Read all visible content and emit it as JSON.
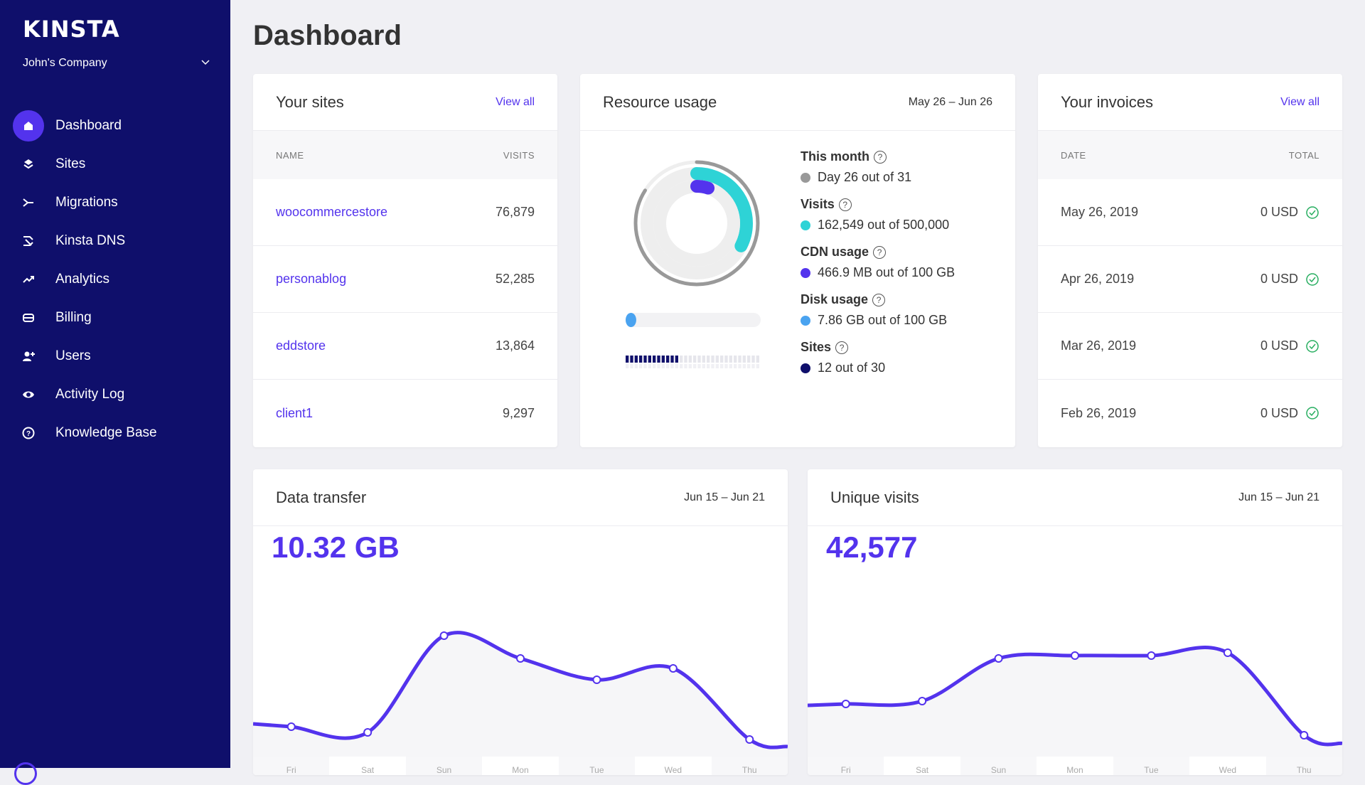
{
  "sidebar": {
    "logo": "KINSTA",
    "company": "John's Company",
    "items": [
      {
        "label": "Dashboard",
        "icon": "home-icon"
      },
      {
        "label": "Sites",
        "icon": "layers-icon"
      },
      {
        "label": "Migrations",
        "icon": "migrate-icon"
      },
      {
        "label": "Kinsta DNS",
        "icon": "dns-icon"
      },
      {
        "label": "Analytics",
        "icon": "trend-icon"
      },
      {
        "label": "Billing",
        "icon": "card-icon"
      },
      {
        "label": "Users",
        "icon": "add-user-icon"
      },
      {
        "label": "Activity Log",
        "icon": "eye-icon"
      },
      {
        "label": "Knowledge Base",
        "icon": "help-icon"
      }
    ]
  },
  "page": {
    "title": "Dashboard"
  },
  "sites": {
    "title": "Your sites",
    "view_all": "View all",
    "col_name": "NAME",
    "col_visits": "VISITS",
    "rows": [
      {
        "name": "woocommercestore",
        "visits": "76,879"
      },
      {
        "name": "personablog",
        "visits": "52,285"
      },
      {
        "name": "eddstore",
        "visits": "13,864"
      },
      {
        "name": "client1",
        "visits": "9,297"
      }
    ]
  },
  "resources": {
    "title": "Resource usage",
    "range": "May 26 – Jun 26",
    "this_month_label": "This month",
    "this_month_value": "Day 26 out of 31",
    "visits_label": "Visits",
    "visits_value": "162,549 out of 500,000",
    "cdn_label": "CDN usage",
    "cdn_value": "466.9 MB out of 100 GB",
    "disk_label": "Disk usage",
    "disk_value": "7.86 GB out of 100 GB",
    "sites_label": "Sites",
    "sites_value": "12 out of 30",
    "progress": {
      "month": 0.84,
      "visits": 0.325,
      "cdn": 0.0047,
      "disk": 0.0786,
      "sites": 0.4
    },
    "colors": {
      "month": "#999999",
      "visits": "#2ed3d6",
      "cdn": "#5333ed",
      "disk": "#4aa3f0",
      "sites": "#0f0f6b"
    }
  },
  "invoices": {
    "title": "Your invoices",
    "view_all": "View all",
    "col_date": "DATE",
    "col_total": "TOTAL",
    "rows": [
      {
        "date": "May 26, 2019",
        "total": "0 USD"
      },
      {
        "date": "Apr 26, 2019",
        "total": "0 USD"
      },
      {
        "date": "Mar 26, 2019",
        "total": "0 USD"
      },
      {
        "date": "Feb 26, 2019",
        "total": "0 USD"
      }
    ]
  },
  "transfer": {
    "title": "Data transfer",
    "range": "Jun 15 – Jun 21",
    "total": "10.32 GB"
  },
  "visits": {
    "title": "Unique visits",
    "range": "Jun 15 – Jun 21",
    "total": "42,577"
  },
  "accent": "#5333ed",
  "chart_data": [
    {
      "type": "line",
      "title": "Data transfer",
      "x": [
        "Fri",
        "Sat",
        "Sun",
        "Mon",
        "Tue",
        "Wed",
        "Thu"
      ],
      "series": [
        {
          "values": [
            0.14,
            0.1,
            0.78,
            0.62,
            0.47,
            0.55,
            0.05
          ]
        }
      ],
      "ylim": [
        0,
        1
      ]
    },
    {
      "type": "line",
      "title": "Unique visits",
      "x": [
        "Fri",
        "Sat",
        "Sun",
        "Mon",
        "Tue",
        "Wed",
        "Thu"
      ],
      "series": [
        {
          "values": [
            0.3,
            0.32,
            0.62,
            0.64,
            0.64,
            0.66,
            0.08
          ]
        }
      ],
      "ylim": [
        0,
        1
      ]
    }
  ]
}
